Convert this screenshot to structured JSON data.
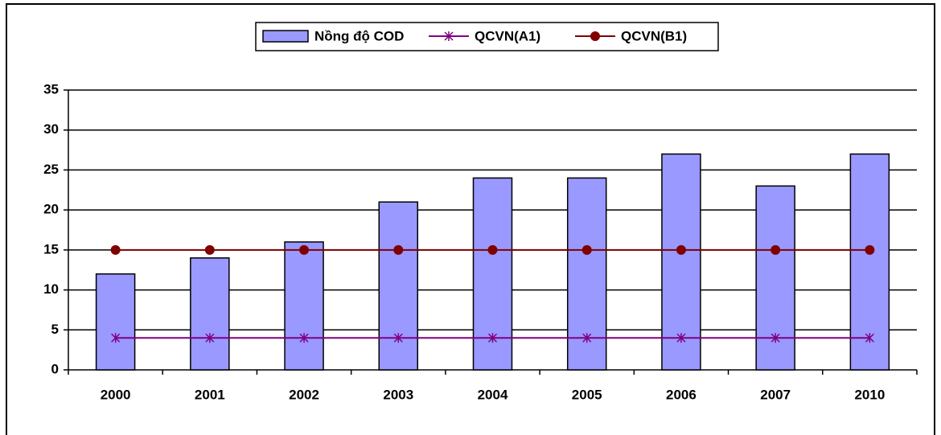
{
  "chart_data": {
    "type": "bar",
    "categories": [
      "2000",
      "2001",
      "2002",
      "2003",
      "2004",
      "2005",
      "2006",
      "2007",
      "2010"
    ],
    "series": [
      {
        "name": "Nồng độ COD",
        "type": "bar",
        "color": "#9999ff",
        "values": [
          12,
          14,
          16,
          21,
          24,
          24,
          27,
          23,
          27
        ]
      },
      {
        "name": "QCVN(A1)",
        "type": "line",
        "marker": "star",
        "color": "#800080",
        "values": [
          4,
          4,
          4,
          4,
          4,
          4,
          4,
          4,
          4
        ]
      },
      {
        "name": "QCVN(B1)",
        "type": "line",
        "marker": "circle",
        "color": "#800000",
        "values": [
          15,
          15,
          15,
          15,
          15,
          15,
          15,
          15,
          15
        ]
      }
    ],
    "ylim": [
      0,
      35
    ],
    "yticks": [
      0,
      5,
      10,
      15,
      20,
      25,
      30,
      35
    ],
    "grid": true,
    "legend": "top"
  }
}
